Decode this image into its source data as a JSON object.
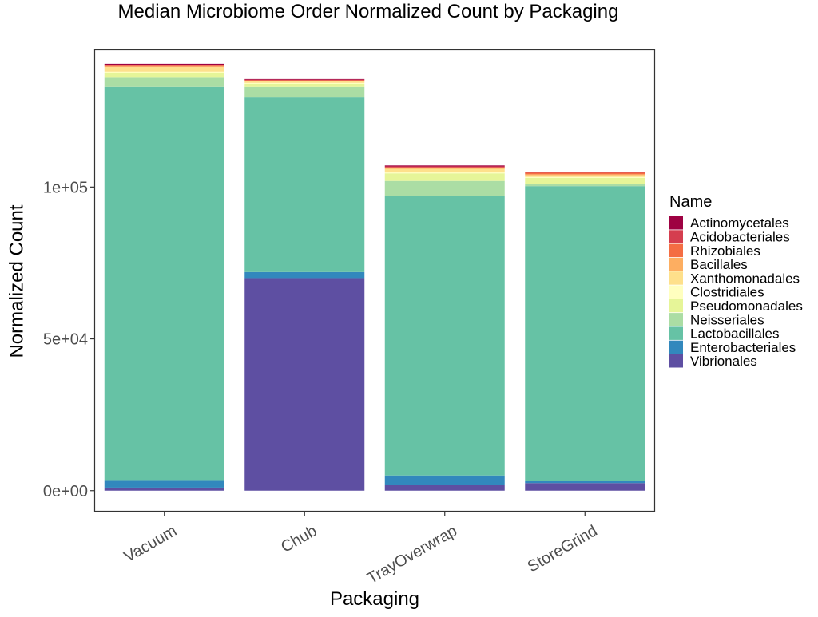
{
  "chart_data": {
    "type": "bar",
    "stacked": true,
    "title": "Median Microbiome Order Normalized Count by Packaging",
    "xlabel": "Packaging",
    "ylabel": "Normalized Count",
    "categories": [
      "Vacuum",
      "Chub",
      "TrayOverwrap",
      "StoreGrind"
    ],
    "ylim": [
      -6900,
      145300
    ],
    "y_ticks": [
      0,
      50000,
      100000
    ],
    "y_tick_labels": [
      "0e+00",
      "5e+04",
      "1e+05"
    ],
    "grid": false,
    "legend": {
      "title": "Name",
      "position": "right"
    },
    "series": [
      {
        "name": "Vibrionales",
        "color": "#5E4FA2",
        "values": [
          1000,
          70000,
          2000,
          2500
        ]
      },
      {
        "name": "Enterobacteriales",
        "color": "#3288BD",
        "values": [
          2500,
          2000,
          3000,
          800
        ]
      },
      {
        "name": "Lactobacillales",
        "color": "#66C2A5",
        "values": [
          129500,
          57500,
          92000,
          97000
        ]
      },
      {
        "name": "Neisseriales",
        "color": "#ABDDA4",
        "values": [
          3000,
          3500,
          5000,
          700
        ]
      },
      {
        "name": "Pseudomonadales",
        "color": "#E6F598",
        "values": [
          1500,
          1000,
          2500,
          2000
        ]
      },
      {
        "name": "Clostridiales",
        "color": "#FFFFBF",
        "values": [
          500,
          300,
          300,
          300
        ]
      },
      {
        "name": "Xanthomonadales",
        "color": "#FEE08B",
        "values": [
          1500,
          600,
          1200,
          600
        ]
      },
      {
        "name": "Bacillales",
        "color": "#FDAE61",
        "values": [
          200,
          100,
          200,
          300
        ]
      },
      {
        "name": "Rhizobiales",
        "color": "#F46D43",
        "values": [
          300,
          200,
          300,
          500
        ]
      },
      {
        "name": "Acidobacteriales",
        "color": "#D53E4F",
        "values": [
          300,
          200,
          300,
          200
        ]
      },
      {
        "name": "Actinomycetales",
        "color": "#9E0142",
        "values": [
          300,
          200,
          300,
          100
        ]
      }
    ],
    "legend_order": [
      "Actinomycetales",
      "Acidobacteriales",
      "Rhizobiales",
      "Bacillales",
      "Xanthomonadales",
      "Clostridiales",
      "Pseudomonadales",
      "Neisseriales",
      "Lactobacillales",
      "Enterobacteriales",
      "Vibrionales"
    ]
  }
}
